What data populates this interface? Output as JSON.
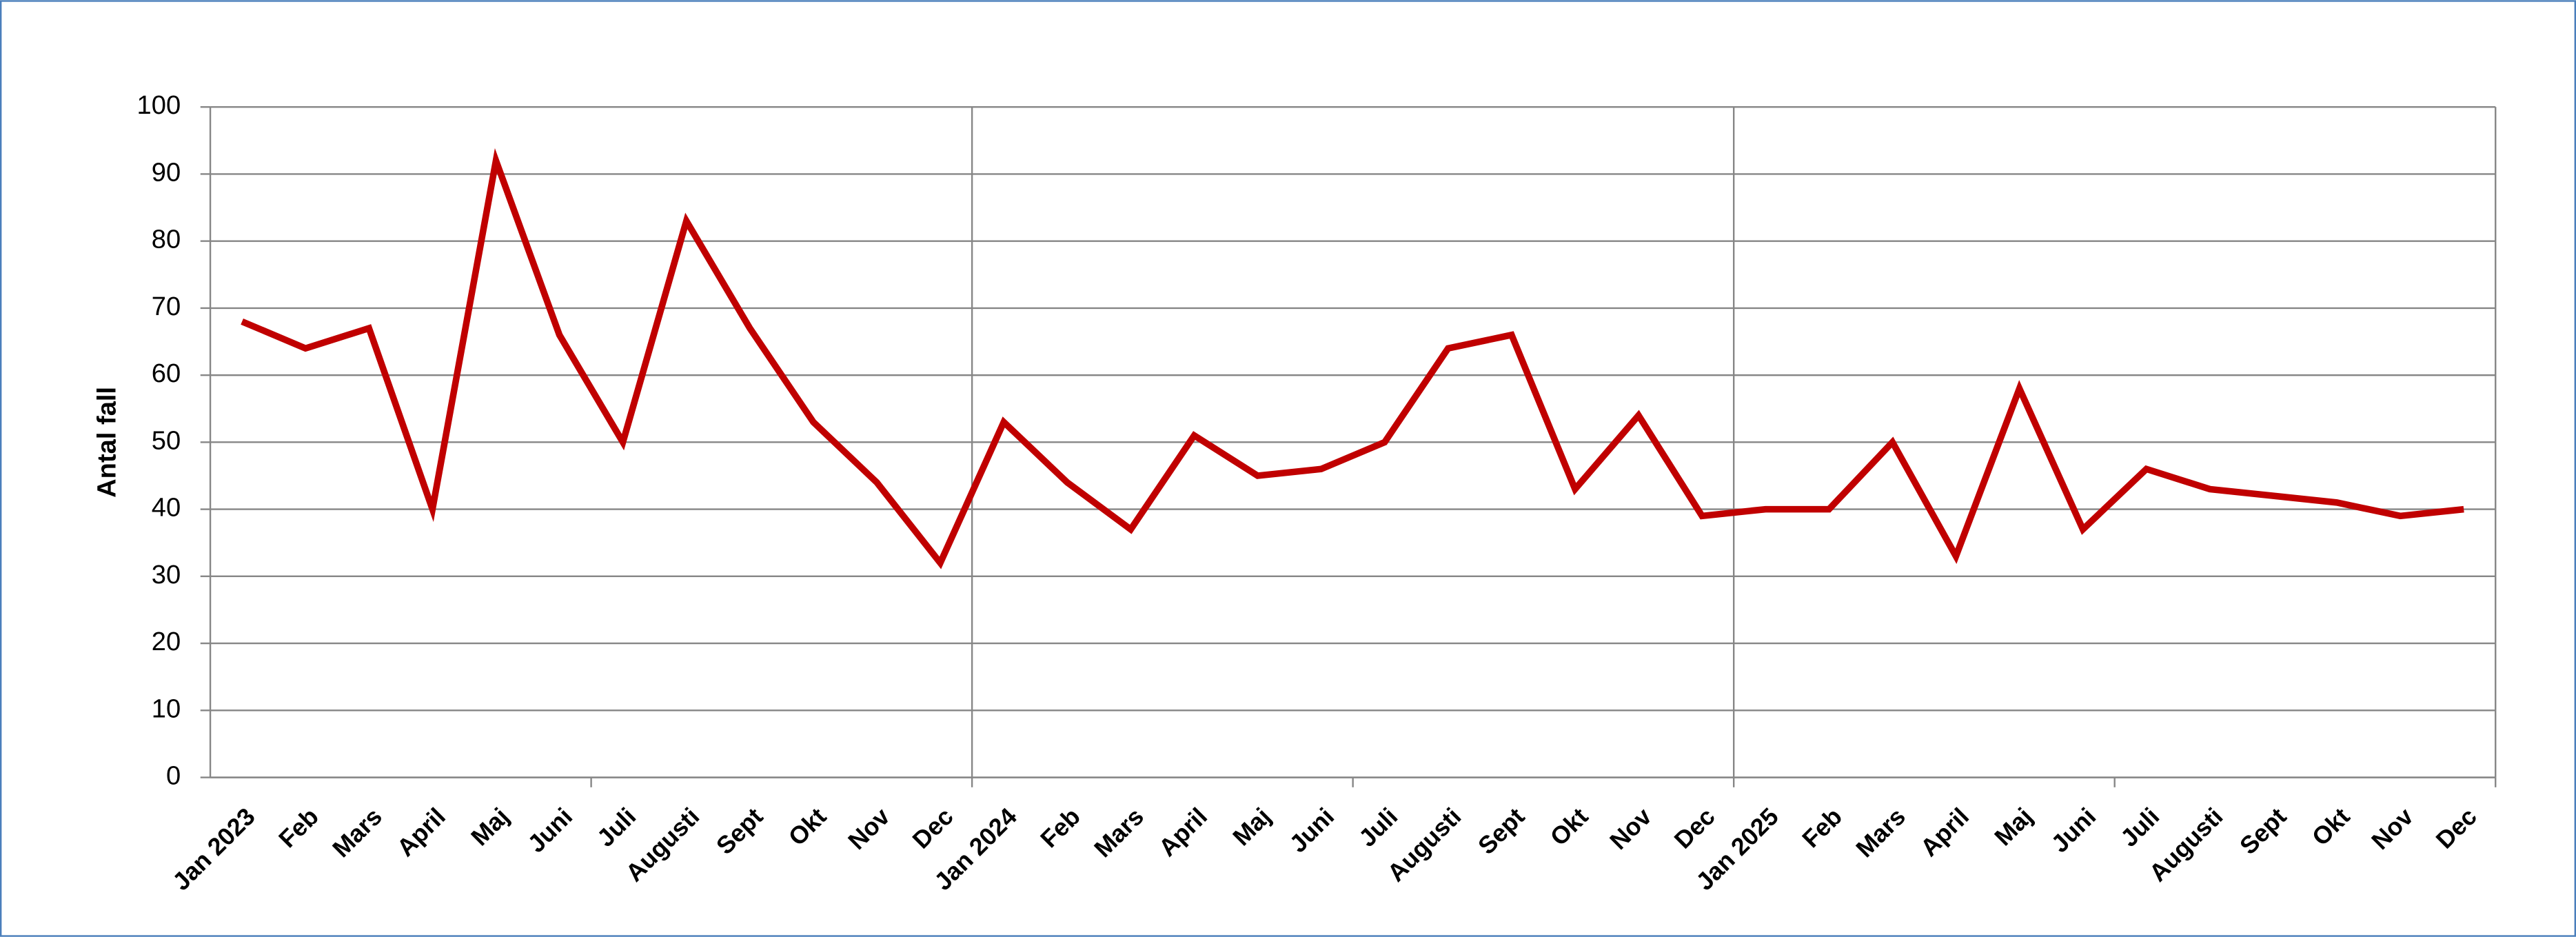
{
  "chart_data": {
    "type": "line",
    "y_label": "Antal fall",
    "categories": [
      "Jan 2023",
      "Feb",
      "Mars",
      "April",
      "Maj",
      "Juni",
      "Juli",
      "Augusti",
      "Sept",
      "Okt",
      "Nov",
      "Dec",
      "Jan 2024",
      "Feb",
      "Mars",
      "April",
      "Maj",
      "Juni",
      "Juli",
      "Augusti",
      "Sept",
      "Okt",
      "Nov",
      "Dec",
      "Jan 2025",
      "Feb",
      "Mars",
      "April",
      "Maj",
      "Juni",
      "Juli",
      "Augusti",
      "Sept",
      "Okt",
      "Nov",
      "Dec"
    ],
    "values": [
      68,
      64,
      67,
      40,
      92,
      66,
      50,
      83,
      67,
      53,
      44,
      32,
      53,
      44,
      37,
      51,
      45,
      46,
      50,
      64,
      66,
      43,
      54,
      39,
      40,
      40,
      50,
      33,
      58,
      37,
      46,
      43,
      42,
      41,
      39,
      40
    ],
    "color": "#c00000",
    "ylim": [
      0,
      100
    ],
    "yticks": [
      0,
      10,
      20,
      30,
      40,
      50,
      60,
      70,
      80,
      90,
      100
    ],
    "grid": true
  }
}
